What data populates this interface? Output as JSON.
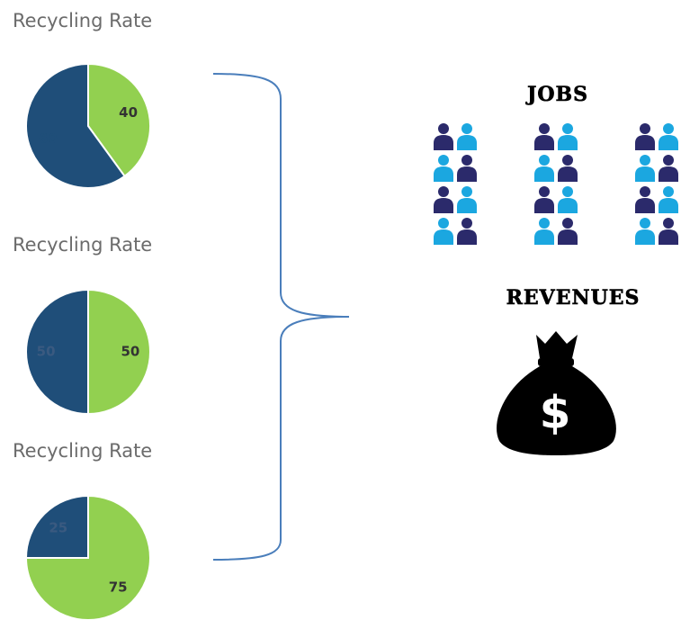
{
  "chart_data": [
    {
      "type": "pie",
      "title": "Recycling Rate",
      "values": [
        40,
        60
      ],
      "colors": [
        "#92d050",
        "#1f4e79"
      ]
    },
    {
      "type": "pie",
      "title": "Recycling Rate",
      "values": [
        50,
        50
      ],
      "colors": [
        "#92d050",
        "#1f4e79"
      ]
    },
    {
      "type": "pie",
      "title": "Recycling Rate",
      "values": [
        75,
        25
      ],
      "colors": [
        "#92d050",
        "#1f4e79"
      ]
    }
  ],
  "jobs": {
    "title": "JOBS"
  },
  "revenues": {
    "title": "REVENUES",
    "symbol": "$"
  }
}
